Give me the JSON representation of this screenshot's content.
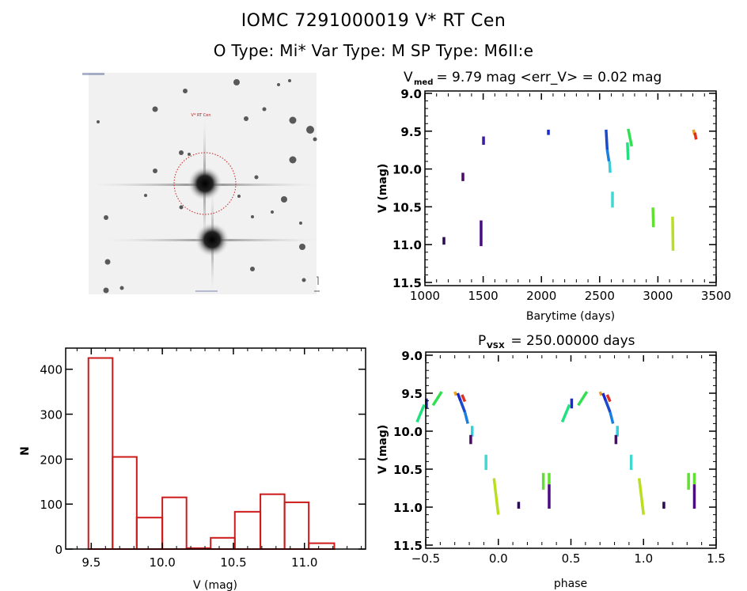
{
  "header": {
    "title": "IOMC 7291000019    V* RT Cen",
    "subtitle": "O Type: Mi*   Var Type: M   SP Type: M6II:e"
  },
  "finding_chart": {
    "target_label": "V* RT Cen",
    "marker_color": "#cc2020"
  },
  "chart_data": [
    {
      "id": "light-curve",
      "type": "scatter",
      "title_main": "V",
      "title_sub": "med",
      "title_rest": " = 9.79 mag <err_V> = 0.02 mag",
      "xlabel": "Barytime (days)",
      "ylabel": "V (mag)",
      "xlim": [
        1000,
        3500
      ],
      "ylim": [
        9.0,
        11.5
      ],
      "y_inverted": true,
      "xticks": [
        1000,
        1500,
        2000,
        2500,
        3000,
        3500
      ],
      "xtick_labels": [
        "1000",
        "1500",
        "2000",
        "2500",
        "3000",
        "3500"
      ],
      "yticks": [
        9.0,
        9.5,
        10.0,
        10.5,
        11.0,
        11.5
      ],
      "ytick_labels": [
        "9.0",
        "9.5",
        "10.0",
        "10.5",
        "11.0",
        "11.5"
      ],
      "segments": [
        {
          "t": [
            1163,
            1163
          ],
          "v": [
            10.9,
            11.0
          ],
          "color": "#2a0a50"
        },
        {
          "t": [
            1326,
            1326
          ],
          "v": [
            10.05,
            10.16
          ],
          "color": "#4a0a6a"
        },
        {
          "t": [
            1482,
            1482
          ],
          "v": [
            10.68,
            11.02
          ],
          "color": "#4b0c80"
        },
        {
          "t": [
            1503,
            1503
          ],
          "v": [
            9.57,
            9.68
          ],
          "color": "#3a1aa0"
        },
        {
          "t": [
            2060,
            2060
          ],
          "v": [
            9.48,
            9.55
          ],
          "color": "#1a2ad0"
        },
        {
          "t": [
            2555,
            2565
          ],
          "v": [
            9.48,
            9.75
          ],
          "color": "#1a4ad0"
        },
        {
          "t": [
            2565,
            2580
          ],
          "v": [
            9.75,
            9.9
          ],
          "color": "#1a80e0"
        },
        {
          "t": [
            2585,
            2590
          ],
          "v": [
            9.9,
            10.05
          ],
          "color": "#30d0e0"
        },
        {
          "t": [
            2610,
            2610
          ],
          "v": [
            10.3,
            10.51
          ],
          "color": "#40d8d0"
        },
        {
          "t": [
            2738,
            2745
          ],
          "v": [
            9.65,
            9.88
          ],
          "color": "#20e080"
        },
        {
          "t": [
            2745,
            2775
          ],
          "v": [
            9.47,
            9.7
          ],
          "color": "#30e050"
        },
        {
          "t": [
            2957,
            2962
          ],
          "v": [
            10.51,
            10.77
          ],
          "color": "#60e030"
        },
        {
          "t": [
            3126,
            3130
          ],
          "v": [
            10.63,
            11.08
          ],
          "color": "#b8e020"
        },
        {
          "t": [
            3305,
            3315
          ],
          "v": [
            9.48,
            9.55
          ],
          "color": "#f0a020"
        },
        {
          "t": [
            3318,
            3328
          ],
          "v": [
            9.52,
            9.61
          ],
          "color": "#e03020"
        }
      ]
    },
    {
      "id": "histogram",
      "type": "bar",
      "xlabel": "V (mag)",
      "ylabel": "N",
      "xlim": [
        9.32,
        11.43
      ],
      "ylim": [
        0,
        447
      ],
      "xticks": [
        9.5,
        10.0,
        10.5,
        11.0
      ],
      "xtick_labels": [
        "9.5",
        "10.0",
        "10.5",
        "11.0"
      ],
      "yticks": [
        0,
        100,
        200,
        300,
        400
      ],
      "ytick_labels": [
        "0",
        "100",
        "200",
        "300",
        "400"
      ],
      "bin_edges": [
        9.48,
        9.65,
        9.82,
        10.0,
        10.17,
        10.34,
        10.51,
        10.69,
        10.86,
        11.03,
        11.21
      ],
      "values": [
        425,
        205,
        70,
        115,
        2,
        25,
        83,
        122,
        104,
        13
      ],
      "bar_color": "#cc1a1a"
    },
    {
      "id": "phase-curve",
      "type": "scatter",
      "title_main": "P",
      "title_sub": "VSX",
      "title_rest": " = 250.00000 days",
      "xlabel": "phase",
      "ylabel": "V (mag)",
      "xlim": [
        -0.5,
        1.5
      ],
      "ylim": [
        9.0,
        11.5
      ],
      "y_inverted": true,
      "period_days": 250.0,
      "xticks": [
        -0.5,
        0.0,
        0.5,
        1.0,
        1.5
      ],
      "xtick_labels": [
        "−0.5",
        "0.0",
        "0.5",
        "1.0",
        "1.5"
      ],
      "yticks": [
        9.0,
        9.5,
        10.0,
        10.5,
        11.0,
        11.5
      ],
      "ytick_labels": [
        "9.0",
        "9.5",
        "10.0",
        "10.5",
        "11.0",
        "11.5"
      ],
      "segments": [
        {
          "p": [
            0.505,
            0.505
          ],
          "v": [
            9.57,
            9.7
          ],
          "color": "#1a2ad0"
        },
        {
          "p": [
            0.44,
            0.49
          ],
          "v": [
            9.88,
            9.65
          ],
          "color": "#20e080"
        },
        {
          "p": [
            0.55,
            0.61
          ],
          "v": [
            9.66,
            9.48
          ],
          "color": "#30e050"
        },
        {
          "p": [
            0.7,
            0.71
          ],
          "v": [
            9.48,
            9.53
          ],
          "color": "#f0a020"
        },
        {
          "p": [
            0.75,
            0.77
          ],
          "v": [
            9.52,
            9.61
          ],
          "color": "#e03020"
        },
        {
          "p": [
            0.72,
            0.74
          ],
          "v": [
            9.5,
            9.6
          ],
          "color": "#1a2ad0"
        },
        {
          "p": [
            0.74,
            0.77
          ],
          "v": [
            9.6,
            9.75
          ],
          "color": "#1a4ad0"
        },
        {
          "p": [
            0.77,
            0.79
          ],
          "v": [
            9.75,
            9.9
          ],
          "color": "#1a80e0"
        },
        {
          "p": [
            0.82,
            0.82
          ],
          "v": [
            9.93,
            10.07
          ],
          "color": "#30d0e0"
        },
        {
          "p": [
            0.81,
            0.81
          ],
          "v": [
            10.05,
            10.17
          ],
          "color": "#4a0a6a"
        },
        {
          "p": [
            0.915,
            0.915
          ],
          "v": [
            10.31,
            10.51
          ],
          "color": "#40d8d0"
        },
        {
          "p": [
            0.97,
            1.0
          ],
          "v": [
            10.62,
            11.1
          ],
          "color": "#b8e020"
        },
        {
          "p": [
            1.14,
            1.14
          ],
          "v": [
            10.93,
            11.02
          ],
          "color": "#2a0a50"
        },
        {
          "p": [
            1.31,
            1.31
          ],
          "v": [
            10.55,
            10.77
          ],
          "color": "#60e030"
        },
        {
          "p": [
            1.35,
            1.35
          ],
          "v": [
            10.55,
            10.7
          ],
          "color": "#60e030"
        },
        {
          "p": [
            1.35,
            1.35
          ],
          "v": [
            10.7,
            11.02
          ],
          "color": "#4b0c80"
        }
      ]
    }
  ]
}
